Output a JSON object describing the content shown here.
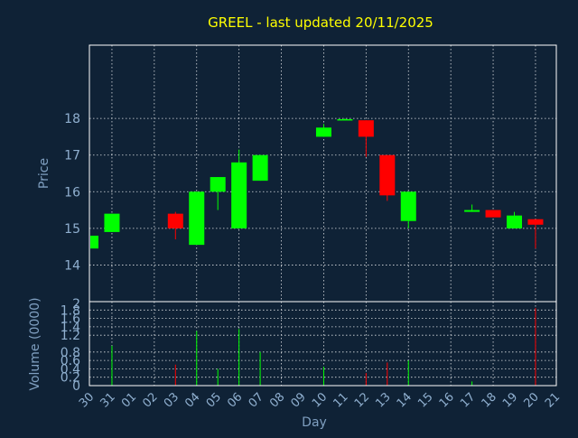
{
  "chart_data": {
    "type": "candlestick",
    "title": "GREEL - last updated 20/11/2025",
    "xlabel": "Day",
    "price_panel": {
      "ylabel": "Price",
      "yticks": [
        14,
        15,
        16,
        17,
        18
      ],
      "ylim": [
        13,
        20
      ]
    },
    "volume_panel": {
      "ylabel": "Volume (0000)",
      "yticks": [
        0,
        0.2,
        0.4,
        0.6,
        0.8,
        1.2,
        1.4,
        1.6,
        1.8
      ],
      "ylim": [
        0,
        2
      ],
      "top_label": "2"
    },
    "grid": true,
    "x_labels": [
      "30",
      "31",
      "01",
      "02",
      "03",
      "04",
      "05",
      "06",
      "07",
      "08",
      "09",
      "10",
      "11",
      "12",
      "13",
      "14",
      "15",
      "16",
      "17",
      "18",
      "19",
      "20",
      "21"
    ],
    "candles": [
      {
        "day": 0,
        "open": 14.45,
        "close": 14.8,
        "high": 14.8,
        "low": 14.45,
        "volume": 0
      },
      {
        "day": 1,
        "open": 14.9,
        "close": 15.4,
        "high": 15.4,
        "low": 14.9,
        "volume": 0.95
      },
      {
        "day": 4,
        "open": 15.4,
        "close": 15.0,
        "high": 15.45,
        "low": 14.7,
        "volume": 0.5
      },
      {
        "day": 5,
        "open": 14.55,
        "close": 16.0,
        "high": 16.0,
        "low": 14.55,
        "volume": 1.3
      },
      {
        "day": 6,
        "open": 16.0,
        "close": 16.4,
        "high": 16.4,
        "low": 15.5,
        "volume": 0.4
      },
      {
        "day": 7,
        "open": 15.0,
        "close": 16.8,
        "high": 17.15,
        "low": 15.0,
        "volume": 1.35
      },
      {
        "day": 8,
        "open": 16.3,
        "close": 17.0,
        "high": 17.0,
        "low": 16.3,
        "volume": 0.8
      },
      {
        "day": 11,
        "open": 17.5,
        "close": 17.75,
        "high": 17.85,
        "low": 17.5,
        "volume": 0.45
      },
      {
        "day": 12,
        "open": 17.95,
        "close": 17.98,
        "high": 18.0,
        "low": 17.95,
        "volume": 0
      },
      {
        "day": 13,
        "open": 17.95,
        "close": 17.5,
        "high": 17.95,
        "low": 16.95,
        "volume": 0.3
      },
      {
        "day": 14,
        "open": 17.0,
        "close": 15.9,
        "high": 17.0,
        "low": 15.75,
        "volume": 0.55
      },
      {
        "day": 15,
        "open": 15.2,
        "close": 16.0,
        "high": 16.0,
        "low": 15.0,
        "volume": 0.6
      },
      {
        "day": 18,
        "open": 15.45,
        "close": 15.5,
        "high": 15.65,
        "low": 15.45,
        "volume": 0.1
      },
      {
        "day": 19,
        "open": 15.5,
        "close": 15.3,
        "high": 15.5,
        "low": 15.3,
        "volume": 0
      },
      {
        "day": 20,
        "open": 15.0,
        "close": 15.35,
        "high": 15.45,
        "low": 15.0,
        "volume": 0
      },
      {
        "day": 21,
        "open": 15.25,
        "close": 15.1,
        "high": 15.25,
        "low": 14.45,
        "volume": 1.85
      }
    ],
    "colors": {
      "up": "#00ff00",
      "down": "#ff0000",
      "background": "#0f2236",
      "title": "#ffff00",
      "text": "#90b0d0"
    }
  }
}
